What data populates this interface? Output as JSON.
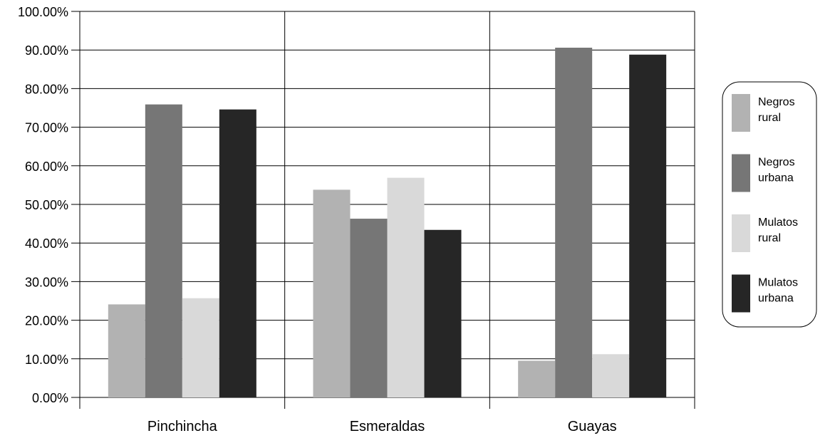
{
  "chart_data": {
    "type": "bar",
    "categories": [
      "Pinchincha",
      "Esmeraldas",
      "Guayas"
    ],
    "series": [
      {
        "name": "Negros rural",
        "name_lines": [
          "Negros",
          "rural"
        ],
        "color": "#b2b2b2",
        "values": [
          24.1,
          53.8,
          9.5
        ]
      },
      {
        "name": "Negros urbana",
        "name_lines": [
          "Negros",
          "urbana"
        ],
        "color": "#767676",
        "values": [
          75.9,
          46.3,
          90.6
        ]
      },
      {
        "name": "Mulatos rural",
        "name_lines": [
          "Mulatos",
          "rural"
        ],
        "color": "#d9d9d9",
        "values": [
          25.7,
          56.9,
          11.2
        ]
      },
      {
        "name": "Mulatos urbana",
        "name_lines": [
          "Mulatos",
          "urbana"
        ],
        "color": "#262626",
        "values": [
          74.6,
          43.4,
          88.8
        ]
      }
    ],
    "yticks": [
      "0.00%",
      "10.00%",
      "20.00%",
      "30.00%",
      "40.00%",
      "50.00%",
      "60.00%",
      "70.00%",
      "80.00%",
      "90.00%",
      "100.00%"
    ],
    "ylim": [
      0,
      100
    ],
    "grid": true,
    "legend_position": "right"
  }
}
